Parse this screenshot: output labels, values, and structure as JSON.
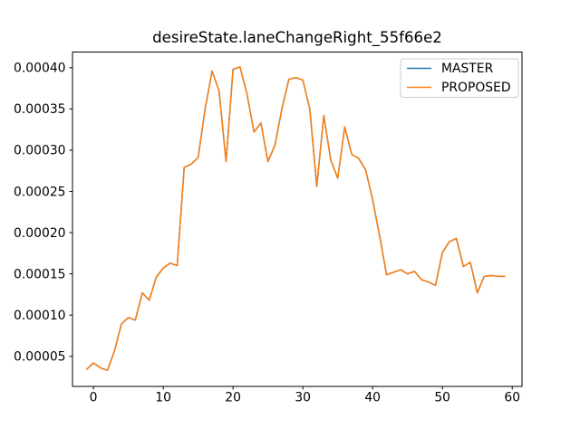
{
  "figure": {
    "background": "#ffffff",
    "text_color": "#000000",
    "spine_color": "#000000"
  },
  "chart_data": {
    "type": "line",
    "title": "desireState.laneChangeRight_55f66e2",
    "xlabel": "",
    "ylabel": "",
    "grid": false,
    "legend": {
      "position": "upper right",
      "entries": [
        "MASTER",
        "PROPOSED"
      ],
      "border_color": "#cccccc",
      "background": "#ffffff"
    },
    "xticks": [
      0,
      10,
      20,
      30,
      40,
      50,
      60
    ],
    "ytick_values": [
      5e-05,
      0.0001,
      0.00015,
      0.0002,
      0.00025,
      0.0003,
      0.00035,
      0.0004
    ],
    "ytick_labels": [
      "0.00005",
      "0.00010",
      "0.00015",
      "0.00020",
      "0.00025",
      "0.00030",
      "0.00035",
      "0.00040"
    ],
    "xlim": [
      -3.0,
      61.4
    ],
    "ylim": [
      1.35e-05,
      0.000419
    ],
    "x": [
      -1,
      0,
      1,
      2,
      3,
      4,
      5,
      6,
      7,
      8,
      9,
      10,
      11,
      12,
      13,
      14,
      15,
      16,
      17,
      18,
      19,
      20,
      21,
      22,
      23,
      24,
      25,
      26,
      27,
      28,
      29,
      30,
      31,
      32,
      33,
      34,
      35,
      36,
      37,
      38,
      39,
      40,
      41,
      42,
      43,
      44,
      45,
      46,
      47,
      48,
      49,
      50,
      51,
      52,
      53,
      54,
      55,
      56,
      57,
      58,
      59
    ],
    "series": [
      {
        "name": "MASTER",
        "color": "#1f77b4",
        "values": [
          3.4e-05,
          4.2e-05,
          3.6e-05,
          3.3e-05,
          5.6e-05,
          8.9e-05,
          9.7e-05,
          9.4e-05,
          0.000127,
          0.000118,
          0.000146,
          0.000157,
          0.000163,
          0.00016,
          0.000279,
          0.000283,
          0.000291,
          0.00035,
          0.000396,
          0.000372,
          0.000286,
          0.000398,
          0.000401,
          0.000368,
          0.000322,
          0.000333,
          0.000286,
          0.000306,
          0.00035,
          0.000386,
          0.000388,
          0.000385,
          0.00035,
          0.000256,
          0.000342,
          0.000288,
          0.000266,
          0.000328,
          0.000295,
          0.00029,
          0.000276,
          0.00024,
          0.000196,
          0.000149,
          0.000152,
          0.000155,
          0.00015,
          0.000153,
          0.000143,
          0.00014,
          0.000136,
          0.000176,
          0.000189,
          0.000193,
          0.000159,
          0.000164,
          0.000127,
          0.000147,
          0.000148,
          0.000147,
          0.000147
        ]
      },
      {
        "name": "PROPOSED",
        "color": "#ff7f0e",
        "values": [
          3.4e-05,
          4.2e-05,
          3.6e-05,
          3.3e-05,
          5.6e-05,
          8.9e-05,
          9.7e-05,
          9.4e-05,
          0.000127,
          0.000118,
          0.000146,
          0.000157,
          0.000163,
          0.00016,
          0.000279,
          0.000283,
          0.000291,
          0.00035,
          0.000396,
          0.000372,
          0.000286,
          0.000398,
          0.000401,
          0.000368,
          0.000322,
          0.000333,
          0.000286,
          0.000306,
          0.00035,
          0.000386,
          0.000388,
          0.000385,
          0.00035,
          0.000256,
          0.000342,
          0.000288,
          0.000266,
          0.000328,
          0.000295,
          0.00029,
          0.000276,
          0.00024,
          0.000196,
          0.000149,
          0.000152,
          0.000155,
          0.00015,
          0.000153,
          0.000143,
          0.00014,
          0.000136,
          0.000176,
          0.000189,
          0.000193,
          0.000159,
          0.000164,
          0.000127,
          0.000147,
          0.000148,
          0.000147,
          0.000147
        ]
      }
    ]
  }
}
